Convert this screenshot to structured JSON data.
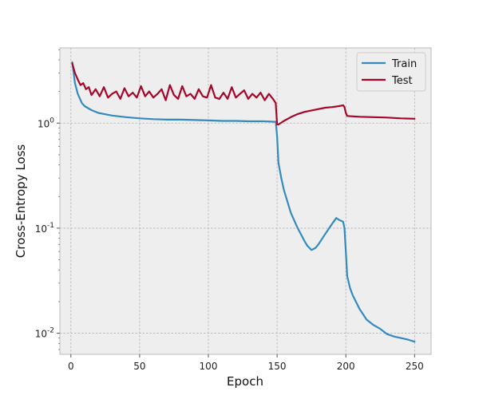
{
  "chart_data": {
    "type": "line",
    "xlabel": "Epoch",
    "ylabel": "Cross-Entropy Loss",
    "xlim": [
      -8,
      262
    ],
    "ylim": [
      0.0063,
      5.2
    ],
    "yscale": "log",
    "grid": true,
    "legend": "top-right",
    "x_ticks": [
      0,
      50,
      100,
      150,
      200,
      250
    ],
    "x_tick_labels": [
      "0",
      "50",
      "100",
      "150",
      "200",
      "250"
    ],
    "y_ticks": [
      0.01,
      0.1,
      1
    ],
    "y_tick_labels": [
      {
        "base": "10",
        "exp": "-2"
      },
      {
        "base": "10",
        "exp": "-1"
      },
      {
        "base": "10",
        "exp": "0"
      }
    ],
    "series": [
      {
        "name": "Train",
        "color": "#348ABD",
        "x": [
          1,
          3,
          5,
          8,
          10,
          15,
          20,
          30,
          40,
          50,
          60,
          70,
          80,
          90,
          100,
          110,
          120,
          130,
          140,
          149,
          150,
          151,
          153,
          155,
          160,
          165,
          170,
          172,
          175,
          178,
          180,
          185,
          190,
          193,
          195,
          198,
          199,
          200,
          201,
          203,
          205,
          210,
          215,
          220,
          225,
          230,
          235,
          240,
          245,
          250
        ],
        "values": [
          3.8,
          2.4,
          1.9,
          1.55,
          1.45,
          1.33,
          1.25,
          1.18,
          1.14,
          1.11,
          1.09,
          1.08,
          1.08,
          1.07,
          1.06,
          1.05,
          1.05,
          1.04,
          1.04,
          1.03,
          0.75,
          0.42,
          0.3,
          0.23,
          0.14,
          0.1,
          0.075,
          0.068,
          0.062,
          0.065,
          0.07,
          0.088,
          0.11,
          0.125,
          0.12,
          0.115,
          0.1,
          0.06,
          0.035,
          0.027,
          0.023,
          0.017,
          0.0135,
          0.012,
          0.011,
          0.0098,
          0.0093,
          0.009,
          0.0087,
          0.0083
        ]
      },
      {
        "name": "Test",
        "color": "#A60628",
        "x": [
          1,
          3,
          5,
          7,
          9,
          11,
          13,
          15,
          18,
          21,
          24,
          27,
          30,
          33,
          36,
          39,
          42,
          45,
          48,
          51,
          54,
          57,
          60,
          63,
          66,
          69,
          72,
          75,
          78,
          81,
          84,
          87,
          90,
          93,
          96,
          99,
          102,
          105,
          108,
          111,
          114,
          117,
          120,
          123,
          126,
          129,
          132,
          135,
          138,
          141,
          144,
          147,
          149,
          150,
          151,
          155,
          160,
          165,
          170,
          175,
          180,
          185,
          190,
          195,
          198,
          199,
          200,
          201,
          205,
          210,
          220,
          230,
          240,
          250
        ],
        "values": [
          3.7,
          3.0,
          2.6,
          2.3,
          2.4,
          2.1,
          2.2,
          1.85,
          2.1,
          1.8,
          2.2,
          1.75,
          1.9,
          2.0,
          1.7,
          2.15,
          1.8,
          1.95,
          1.75,
          2.25,
          1.8,
          2.0,
          1.75,
          1.9,
          2.1,
          1.65,
          2.3,
          1.85,
          1.7,
          2.25,
          1.8,
          1.9,
          1.7,
          2.1,
          1.8,
          1.75,
          2.3,
          1.75,
          1.7,
          1.95,
          1.7,
          2.2,
          1.75,
          1.9,
          2.05,
          1.7,
          1.9,
          1.75,
          1.95,
          1.65,
          1.9,
          1.7,
          1.55,
          0.97,
          0.97,
          1.05,
          1.14,
          1.22,
          1.28,
          1.32,
          1.36,
          1.4,
          1.42,
          1.45,
          1.48,
          1.42,
          1.25,
          1.17,
          1.16,
          1.15,
          1.14,
          1.13,
          1.11,
          1.1
        ]
      }
    ]
  }
}
